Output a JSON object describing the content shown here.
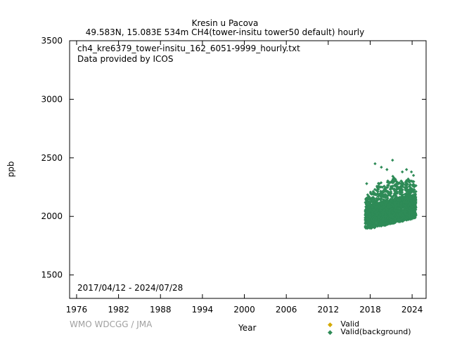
{
  "header": {
    "title": "Kresin u Pacova",
    "subtitle": "49.583N, 15.083E 534m    CH4(tower-insitu tower50 default) hourly"
  },
  "annotations": {
    "filename": "ch4_kre6379_tower-insitu_162_6051-9999_hourly.txt",
    "provider": "Data provided by ICOS",
    "date_range": "2017/04/12 - 2024/07/28"
  },
  "footer": {
    "credit": "WMO WDCGG / JMA"
  },
  "colors": {
    "valid": "#d4a900",
    "background": "#2e8b57",
    "credit": "#a0a0a0"
  },
  "chart_data": {
    "type": "scatter",
    "xlabel": "Year",
    "ylabel": "ppb",
    "xlim": [
      1975,
      2026
    ],
    "ylim": [
      1300,
      3500
    ],
    "x_ticks": [
      1976,
      1982,
      1988,
      1994,
      2000,
      2006,
      2012,
      2018,
      2024
    ],
    "y_ticks": [
      1500,
      2000,
      2500,
      3000,
      3500
    ],
    "grid": false,
    "legend": "bottom-right",
    "series": [
      {
        "name": "Valid",
        "marker": "diamond",
        "color": "#d4a900",
        "x": [],
        "y": []
      },
      {
        "name": "Valid(background)",
        "marker": "diamond",
        "color": "#2e8b57",
        "envelope": {
          "x": [
            2017.3,
            2017.8,
            2018.3,
            2018.8,
            2019.3,
            2019.8,
            2020.3,
            2020.8,
            2021.3,
            2021.8,
            2022.3,
            2022.8,
            2023.3,
            2023.8,
            2024.3,
            2024.55
          ],
          "y_low": [
            1900,
            1895,
            1900,
            1905,
            1915,
            1920,
            1925,
            1935,
            1940,
            1950,
            1955,
            1960,
            1970,
            1975,
            1985,
            1990
          ],
          "y_mid": [
            1990,
            2010,
            2020,
            2030,
            2040,
            2050,
            2055,
            2060,
            2070,
            2080,
            2085,
            2090,
            2095,
            2100,
            2105,
            2110
          ],
          "y_high": [
            2150,
            2230,
            2200,
            2250,
            2300,
            2280,
            2310,
            2300,
            2360,
            2300,
            2320,
            2280,
            2330,
            2300,
            2310,
            2290
          ]
        },
        "outliers": [
          {
            "x": 2017.5,
            "y": 2280
          },
          {
            "x": 2018.7,
            "y": 2450
          },
          {
            "x": 2019.6,
            "y": 2420
          },
          {
            "x": 2020.4,
            "y": 2400
          },
          {
            "x": 2021.2,
            "y": 2480
          },
          {
            "x": 2022.6,
            "y": 2380
          },
          {
            "x": 2023.2,
            "y": 2400
          },
          {
            "x": 2023.9,
            "y": 2380
          },
          {
            "x": 2024.2,
            "y": 2350
          }
        ]
      }
    ]
  }
}
